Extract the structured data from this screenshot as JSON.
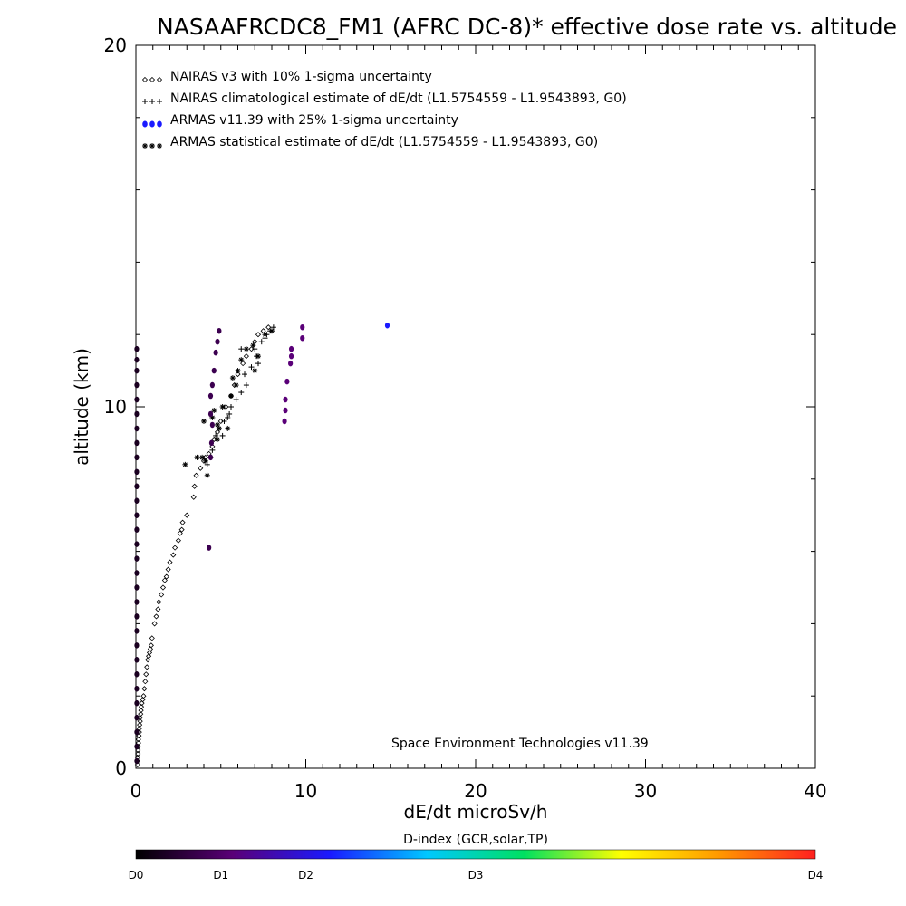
{
  "chart_data": {
    "type": "scatter",
    "title": "NASAAFRCDC8_FM1 (AFRC DC-8)* effective dose rate vs. altitude",
    "xlabel": "dE/dt microSv/h",
    "ylabel": "altitude (km)",
    "xlim": [
      0,
      40
    ],
    "ylim": [
      0,
      20
    ],
    "x_ticks": [
      "0",
      "10",
      "20",
      "30",
      "40"
    ],
    "y_ticks": [
      "0",
      "10",
      "20"
    ],
    "legend_placement": "top-left",
    "annotation": "Space Environment Technologies v11.39",
    "colorbar": {
      "title": "D-index (GCR,solar,TP)",
      "labels": [
        "D0",
        "D1",
        "D2",
        "D3",
        "D4"
      ],
      "label_positions": [
        0,
        0.125,
        0.25,
        0.5,
        1.0
      ],
      "colors": [
        "#000000",
        "#5a0078",
        "#1a1aff",
        "#00c8ff",
        "#00e060",
        "#ffff00",
        "#ff9900",
        "#ff2020"
      ]
    },
    "series": [
      {
        "name": "NAIRAS v3 with 10% 1-sigma uncertainty",
        "marker": "diamond",
        "color": "#000000",
        "points": [
          [
            0.1,
            0.1
          ],
          [
            0.1,
            0.2
          ],
          [
            0.1,
            0.3
          ],
          [
            0.12,
            0.4
          ],
          [
            0.12,
            0.5
          ],
          [
            0.13,
            0.6
          ],
          [
            0.15,
            0.7
          ],
          [
            0.15,
            0.8
          ],
          [
            0.18,
            0.9
          ],
          [
            0.2,
            1.0
          ],
          [
            0.2,
            1.1
          ],
          [
            0.22,
            1.2
          ],
          [
            0.25,
            1.3
          ],
          [
            0.25,
            1.4
          ],
          [
            0.28,
            1.5
          ],
          [
            0.3,
            1.6
          ],
          [
            0.32,
            1.7
          ],
          [
            0.35,
            1.8
          ],
          [
            0.4,
            1.9
          ],
          [
            0.45,
            2.0
          ],
          [
            0.5,
            2.2
          ],
          [
            0.55,
            2.4
          ],
          [
            0.6,
            2.6
          ],
          [
            0.65,
            2.8
          ],
          [
            0.7,
            3.0
          ],
          [
            0.75,
            3.1
          ],
          [
            0.8,
            3.2
          ],
          [
            0.85,
            3.3
          ],
          [
            0.9,
            3.4
          ],
          [
            0.95,
            3.6
          ],
          [
            1.1,
            4.0
          ],
          [
            1.2,
            4.2
          ],
          [
            1.3,
            4.4
          ],
          [
            1.35,
            4.6
          ],
          [
            1.5,
            4.8
          ],
          [
            1.6,
            5.0
          ],
          [
            1.7,
            5.2
          ],
          [
            1.8,
            5.3
          ],
          [
            1.9,
            5.5
          ],
          [
            2.0,
            5.7
          ],
          [
            2.2,
            5.9
          ],
          [
            2.3,
            6.1
          ],
          [
            2.5,
            6.3
          ],
          [
            2.6,
            6.5
          ],
          [
            2.7,
            6.6
          ],
          [
            2.75,
            6.8
          ],
          [
            3.0,
            7.0
          ],
          [
            3.4,
            7.5
          ],
          [
            3.45,
            7.8
          ],
          [
            3.55,
            8.1
          ],
          [
            3.8,
            8.3
          ],
          [
            4.0,
            8.5
          ],
          [
            4.1,
            8.6
          ],
          [
            4.3,
            8.7
          ],
          [
            4.5,
            8.9
          ],
          [
            4.6,
            9.1
          ],
          [
            4.8,
            9.3
          ],
          [
            5.0,
            9.6
          ],
          [
            5.3,
            10.0
          ],
          [
            5.6,
            10.3
          ],
          [
            5.8,
            10.6
          ],
          [
            6.0,
            10.9
          ],
          [
            6.3,
            11.2
          ],
          [
            6.5,
            11.4
          ],
          [
            6.8,
            11.6
          ],
          [
            7.0,
            11.8
          ],
          [
            7.2,
            12.0
          ],
          [
            7.5,
            12.1
          ],
          [
            7.8,
            12.2
          ]
        ]
      },
      {
        "name": "NAIRAS climatological estimate of dE/dt (L1.5754559 - L1.9543893, G0)",
        "marker": "plus",
        "color": "#000000",
        "points": [
          [
            4.2,
            8.4
          ],
          [
            4.4,
            8.6
          ],
          [
            4.5,
            8.8
          ],
          [
            4.7,
            9.2
          ],
          [
            4.9,
            9.4
          ],
          [
            5.2,
            9.6
          ],
          [
            5.4,
            9.7
          ],
          [
            5.5,
            9.8
          ],
          [
            5.6,
            10.0
          ],
          [
            5.9,
            10.2
          ],
          [
            6.2,
            10.4
          ],
          [
            6.5,
            10.6
          ],
          [
            6.4,
            10.9
          ],
          [
            6.8,
            11.1
          ],
          [
            7.2,
            11.2
          ],
          [
            7.1,
            11.4
          ],
          [
            7.0,
            11.6
          ],
          [
            7.4,
            11.8
          ],
          [
            7.6,
            11.9
          ],
          [
            7.9,
            12.1
          ],
          [
            8.1,
            12.2
          ],
          [
            7.7,
            12.0
          ],
          [
            5.1,
            9.2
          ],
          [
            6.2,
            11.6
          ]
        ]
      },
      {
        "name": "ARMAS v11.39 with 25% 1-sigma uncertainty",
        "marker": "dot",
        "color": "#1a1aff",
        "points": []
      },
      {
        "name": "ARMAS statistical estimate of dE/dt (L1.5754559 - L1.9543893, G0)",
        "marker": "asterisk",
        "color": "#000000",
        "points": [
          [
            2.9,
            8.4
          ],
          [
            3.6,
            8.6
          ],
          [
            3.9,
            8.6
          ],
          [
            4.1,
            8.5
          ],
          [
            4.2,
            8.1
          ],
          [
            4.0,
            9.6
          ],
          [
            4.5,
            9.7
          ],
          [
            4.6,
            9.9
          ],
          [
            4.8,
            9.5
          ],
          [
            4.8,
            9.1
          ],
          [
            5.1,
            10.0
          ],
          [
            5.6,
            10.3
          ],
          [
            5.7,
            10.8
          ],
          [
            6.0,
            11.0
          ],
          [
            6.2,
            11.3
          ],
          [
            6.5,
            11.6
          ],
          [
            6.9,
            11.7
          ],
          [
            7.0,
            11.0
          ],
          [
            7.2,
            11.4
          ],
          [
            7.6,
            12.0
          ],
          [
            8.0,
            12.1
          ],
          [
            4.9,
            9.4
          ],
          [
            5.4,
            9.4
          ],
          [
            5.9,
            10.6
          ]
        ]
      }
    ],
    "armas_points": [
      {
        "x": 14.8,
        "y": 12.25,
        "color": "#1a1aff"
      },
      {
        "x": 9.8,
        "y": 12.2,
        "color": "#5a0078"
      },
      {
        "x": 9.8,
        "y": 11.9,
        "color": "#5a0078"
      },
      {
        "x": 9.15,
        "y": 11.6,
        "color": "#5a0078"
      },
      {
        "x": 9.15,
        "y": 11.4,
        "color": "#5a0078"
      },
      {
        "x": 9.1,
        "y": 11.2,
        "color": "#5a0078"
      },
      {
        "x": 8.9,
        "y": 10.7,
        "color": "#5a0078"
      },
      {
        "x": 8.8,
        "y": 10.2,
        "color": "#5a0078"
      },
      {
        "x": 8.8,
        "y": 9.9,
        "color": "#5a0078"
      },
      {
        "x": 8.75,
        "y": 9.6,
        "color": "#5a0078"
      },
      {
        "x": 4.9,
        "y": 12.1,
        "color": "#3c0050"
      },
      {
        "x": 4.8,
        "y": 11.8,
        "color": "#3c0050"
      },
      {
        "x": 4.7,
        "y": 11.5,
        "color": "#3c0050"
      },
      {
        "x": 4.6,
        "y": 11.0,
        "color": "#3c0050"
      },
      {
        "x": 4.5,
        "y": 10.6,
        "color": "#3c0050"
      },
      {
        "x": 4.4,
        "y": 10.3,
        "color": "#3c0050"
      },
      {
        "x": 4.4,
        "y": 9.8,
        "color": "#3c0050"
      },
      {
        "x": 4.5,
        "y": 9.5,
        "color": "#3c0050"
      },
      {
        "x": 4.45,
        "y": 9.0,
        "color": "#3c0050"
      },
      {
        "x": 4.4,
        "y": 8.6,
        "color": "#3c0050"
      },
      {
        "x": 4.3,
        "y": 6.1,
        "color": "#3c0050"
      },
      {
        "x": 0.05,
        "y": 11.6,
        "color": "#1a0020"
      },
      {
        "x": 0.05,
        "y": 11.3,
        "color": "#1a0020"
      },
      {
        "x": 0.05,
        "y": 11.0,
        "color": "#1a0020"
      },
      {
        "x": 0.05,
        "y": 10.6,
        "color": "#1a0020"
      },
      {
        "x": 0.05,
        "y": 10.2,
        "color": "#1a0020"
      },
      {
        "x": 0.05,
        "y": 9.8,
        "color": "#1a0020"
      },
      {
        "x": 0.05,
        "y": 9.4,
        "color": "#1a0020"
      },
      {
        "x": 0.05,
        "y": 9.0,
        "color": "#1a0020"
      },
      {
        "x": 0.05,
        "y": 8.6,
        "color": "#1a0020"
      },
      {
        "x": 0.05,
        "y": 8.2,
        "color": "#1a0020"
      },
      {
        "x": 0.05,
        "y": 7.8,
        "color": "#1a0020"
      },
      {
        "x": 0.05,
        "y": 7.4,
        "color": "#1a0020"
      },
      {
        "x": 0.05,
        "y": 7.0,
        "color": "#1a0020"
      },
      {
        "x": 0.05,
        "y": 6.6,
        "color": "#1a0020"
      },
      {
        "x": 0.05,
        "y": 6.2,
        "color": "#1a0020"
      },
      {
        "x": 0.05,
        "y": 5.8,
        "color": "#1a0020"
      },
      {
        "x": 0.05,
        "y": 5.4,
        "color": "#1a0020"
      },
      {
        "x": 0.05,
        "y": 5.0,
        "color": "#1a0020"
      },
      {
        "x": 0.05,
        "y": 4.6,
        "color": "#1a0020"
      },
      {
        "x": 0.05,
        "y": 4.2,
        "color": "#1a0020"
      },
      {
        "x": 0.05,
        "y": 3.8,
        "color": "#1a0020"
      },
      {
        "x": 0.05,
        "y": 3.4,
        "color": "#1a0020"
      },
      {
        "x": 0.05,
        "y": 3.0,
        "color": "#1a0020"
      },
      {
        "x": 0.05,
        "y": 2.6,
        "color": "#1a0020"
      },
      {
        "x": 0.05,
        "y": 2.2,
        "color": "#1a0020"
      },
      {
        "x": 0.05,
        "y": 1.8,
        "color": "#1a0020"
      },
      {
        "x": 0.05,
        "y": 1.4,
        "color": "#1a0020"
      },
      {
        "x": 0.05,
        "y": 1.0,
        "color": "#1a0020"
      },
      {
        "x": 0.05,
        "y": 0.6,
        "color": "#1a0020"
      },
      {
        "x": 0.05,
        "y": 0.2,
        "color": "#1a0020"
      }
    ]
  }
}
